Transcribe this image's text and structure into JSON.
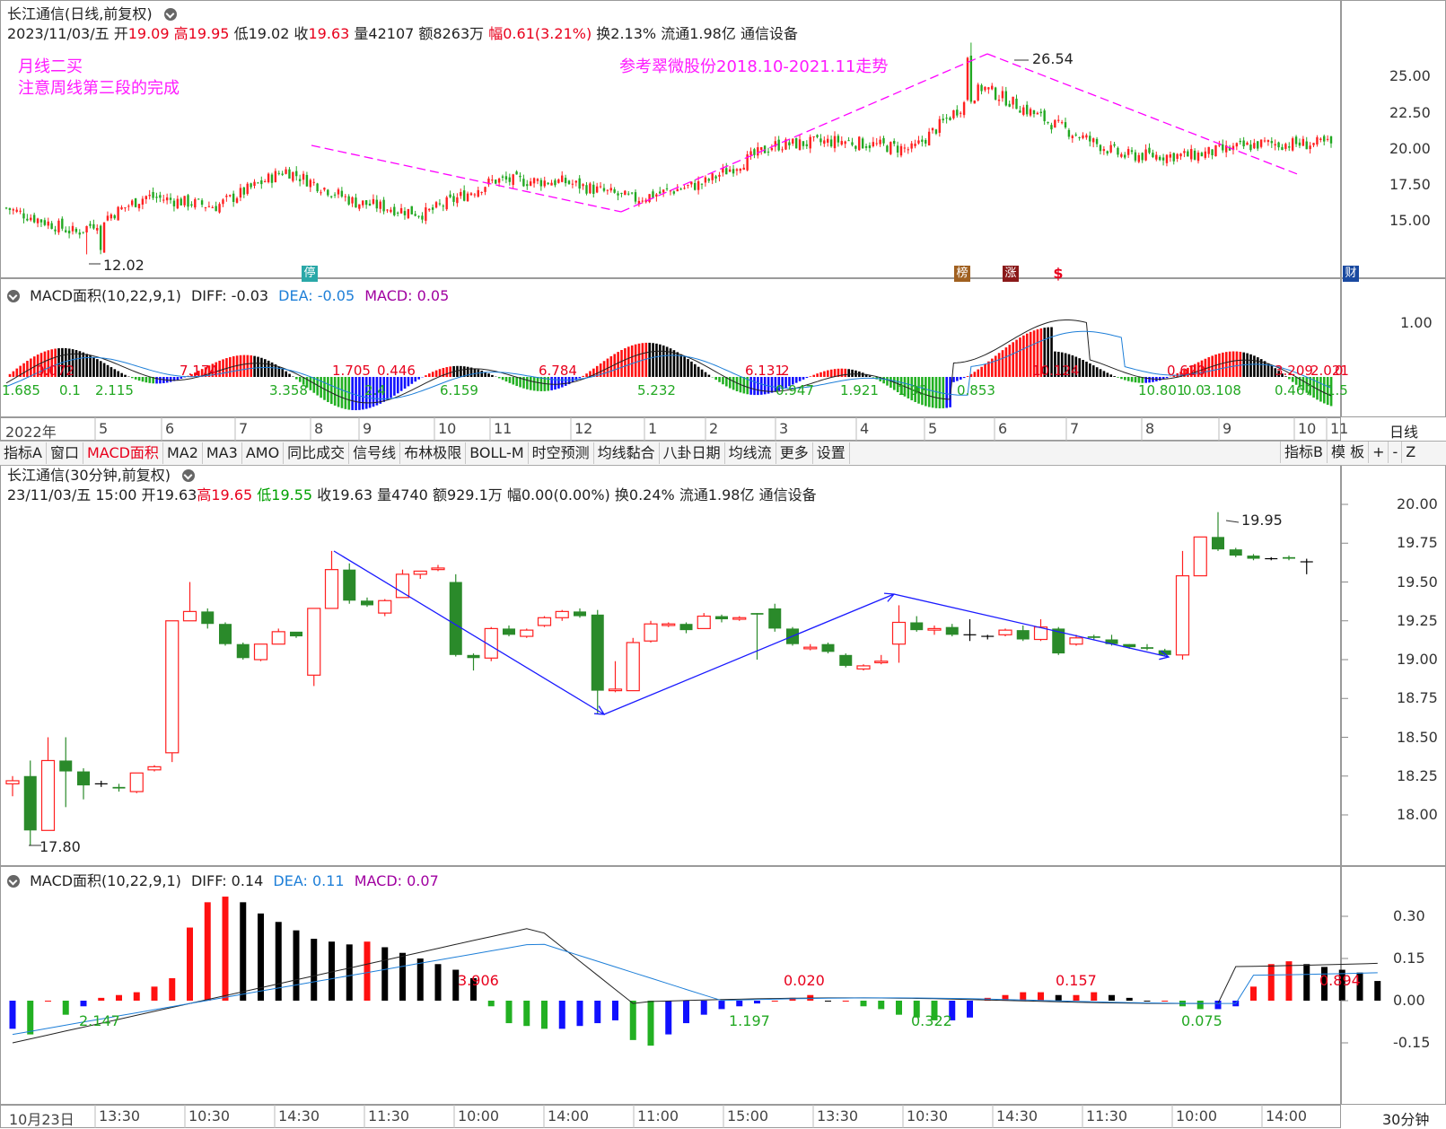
{
  "daily": {
    "title": "长江通信(日线,前复权)",
    "date": "2023/11/03/五",
    "open_label": "开",
    "open": "19.09",
    "high_label": "高",
    "high": "19.95",
    "low_label": "低",
    "low": "19.02",
    "close_label": "收",
    "close": "19.63",
    "vol": "量42107",
    "amt": "额8263万",
    "chg_label": "幅",
    "chg": "0.61(3.21%)",
    "turn": "换2.13%",
    "float": "流通1.98亿",
    "sector": "通信设备",
    "note1": "月线二买",
    "note2": "注意周线第三段的完成",
    "note3": "参考翠微股份2018.10-2021.11走势",
    "peak_label": "26.54",
    "low_label_val": "12.02",
    "yticks": [
      "25.00",
      "22.50",
      "20.00",
      "17.50",
      "15.00"
    ],
    "badges": [
      "停",
      "榜",
      "涨",
      "$",
      "财"
    ]
  },
  "daily_macd": {
    "title": "MACD面积(10,22,9,1)",
    "diff": "DIFF: -0.03",
    "dea": "DEA: -0.05",
    "macd": "MACD: 0.05",
    "ytick": "1.00",
    "area_labels_red": [
      "0.072",
      "7.174",
      "1.705",
      "0.446",
      "6.784",
      "6.131",
      "2",
      "10.124",
      "0.620",
      "3.209",
      "2.021",
      "0"
    ],
    "area_labels_green": [
      "1.685",
      "0.1",
      "2.115",
      "3.358",
      "2.4",
      "6.159",
      "5.232",
      "0.947",
      "1.921",
      "1.93",
      "0.853",
      "10.801",
      "0.0",
      "3.108",
      "0.467",
      "1.5"
    ]
  },
  "daily_xaxis": {
    "labels": [
      "2022年",
      "5",
      "6",
      "7",
      "8",
      "9",
      "10",
      "11",
      "12",
      "1",
      "2",
      "3",
      "4",
      "5",
      "6",
      "7",
      "8",
      "9",
      "10",
      "11"
    ],
    "period": "日线"
  },
  "toolbar": {
    "items": [
      "指标A",
      "窗口",
      "MACD面积",
      "MA2",
      "MA3",
      "AMO",
      "同比成交",
      "信号线",
      "布林极限",
      "BOLL-M",
      "时空预测",
      "均线黏合",
      "八卦日期",
      "均线流",
      "更多",
      "设置"
    ],
    "right": [
      "指标B",
      "模 板",
      "+",
      "-",
      "Z"
    ]
  },
  "intraday": {
    "title": "长江通信(30分钟,前复权)",
    "date": "23/11/03/五 15:00",
    "open": "开19.63",
    "high_label": "高",
    "high": "19.65",
    "low_label": "低",
    "low": "19.55",
    "close": "收19.63",
    "vol": "量4740",
    "amt": "额929.1万",
    "chg": "幅0.00(0.00%)",
    "turn": "换0.24%",
    "float": "流通1.98亿",
    "sector": "通信设备",
    "peak_label": "19.95",
    "low_label_val": "17.80",
    "yticks": [
      "20.00",
      "19.75",
      "19.50",
      "19.25",
      "19.00",
      "18.75",
      "18.50",
      "18.25",
      "18.00"
    ]
  },
  "intraday_macd": {
    "title": "MACD面积(10,22,9,1)",
    "diff": "DIFF: 0.14",
    "dea": "DEA: 0.11",
    "macd": "MACD: 0.07",
    "yticks": [
      "0.30",
      "0.15",
      "0.00",
      "-0.15"
    ],
    "area_labels_red": [
      "3.906",
      "0.020",
      "0.157",
      "0.894"
    ],
    "area_labels_green": [
      "2.147",
      "1.197",
      "0.322",
      "0.075"
    ]
  },
  "intraday_xaxis": {
    "labels": [
      "10月23日",
      "13:30",
      "10:30",
      "14:30",
      "11:30",
      "10:00",
      "14:00",
      "11:00",
      "15:00",
      "13:30",
      "10:30",
      "14:30",
      "11:30",
      "10:00",
      "14:00"
    ],
    "period": "30分钟"
  },
  "chart_data": [
    {
      "type": "candlestick",
      "title": "长江通信(日线,前复权)",
      "ylim": [
        11,
        27
      ],
      "x": [
        "2022-04",
        "2022-05",
        "2022-06",
        "2022-07",
        "2022-08",
        "2022-09",
        "2022-10",
        "2022-11",
        "2022-12",
        "2023-01",
        "2023-02",
        "2023-03",
        "2023-04",
        "2023-05",
        "2023-06",
        "2023-07",
        "2023-08",
        "2023-09",
        "2023-10",
        "2023-11"
      ],
      "close_trend": [
        15.2,
        13.5,
        16.0,
        15.3,
        17.8,
        15.6,
        14.8,
        17.1,
        17.0,
        15.8,
        16.9,
        19.5,
        19.8,
        19.2,
        23.5,
        21.0,
        18.8,
        18.8,
        19.6,
        19.6
      ],
      "high": 26.54,
      "low": 12.02,
      "last": {
        "open": 19.09,
        "high": 19.95,
        "low": 19.02,
        "close": 19.63
      }
    },
    {
      "type": "bar",
      "title": "MACD面积(10,22,9,1)",
      "diff": -0.03,
      "dea": -0.05,
      "macd": 0.05
    },
    {
      "type": "candlestick",
      "title": "长江通信(30分钟,前复权)",
      "ylim": [
        17.7,
        20.05
      ],
      "candles": [
        [
          18.2,
          18.22,
          18.12,
          18.25
        ],
        [
          18.25,
          17.9,
          17.8,
          18.35
        ],
        [
          17.9,
          18.35,
          17.9,
          18.5
        ],
        [
          18.35,
          18.28,
          18.05,
          18.5
        ],
        [
          18.28,
          18.19,
          18.1,
          18.3
        ],
        [
          18.2,
          18.2,
          18.18,
          18.22
        ],
        [
          18.18,
          18.17,
          18.15,
          18.2
        ],
        [
          18.15,
          18.27,
          18.14,
          18.27
        ],
        [
          18.29,
          18.31,
          18.28,
          18.32
        ],
        [
          18.4,
          19.25,
          18.34,
          19.25
        ],
        [
          19.25,
          19.31,
          19.25,
          19.5
        ],
        [
          19.31,
          19.23,
          19.2,
          19.33
        ],
        [
          19.23,
          19.1,
          19.09,
          19.24
        ],
        [
          19.1,
          19.01,
          19.0,
          19.11
        ],
        [
          19.0,
          19.1,
          18.99,
          19.1
        ],
        [
          19.1,
          19.18,
          19.1,
          19.2
        ],
        [
          19.18,
          19.15,
          19.14,
          19.17
        ],
        [
          18.9,
          19.33,
          18.83,
          19.33
        ],
        [
          19.33,
          19.58,
          19.33,
          19.7
        ],
        [
          19.58,
          19.38,
          19.36,
          19.62
        ],
        [
          19.38,
          19.35,
          19.34,
          19.4
        ],
        [
          19.3,
          19.38,
          19.28,
          19.39
        ],
        [
          19.4,
          19.55,
          19.4,
          19.58
        ],
        [
          19.55,
          19.57,
          19.52,
          19.57
        ],
        [
          19.58,
          19.59,
          19.57,
          19.61
        ],
        [
          19.5,
          19.03,
          19.02,
          19.55
        ],
        [
          19.03,
          19.01,
          18.93,
          19.04
        ],
        [
          19.01,
          19.2,
          18.99,
          19.21
        ],
        [
          19.2,
          19.16,
          19.15,
          19.22
        ],
        [
          19.15,
          19.19,
          19.14,
          19.2
        ],
        [
          19.22,
          19.27,
          19.21,
          19.28
        ],
        [
          19.27,
          19.31,
          19.25,
          19.32
        ],
        [
          19.31,
          19.28,
          19.27,
          19.33
        ],
        [
          19.29,
          18.8,
          18.65,
          19.32
        ],
        [
          18.8,
          18.81,
          18.79,
          18.99
        ],
        [
          18.8,
          19.11,
          18.8,
          19.14
        ],
        [
          19.12,
          19.23,
          19.11,
          19.25
        ],
        [
          19.22,
          19.23,
          19.21,
          19.24
        ],
        [
          19.23,
          19.19,
          19.17,
          19.24
        ],
        [
          19.2,
          19.28,
          19.2,
          19.3
        ],
        [
          19.28,
          19.26,
          19.24,
          19.29
        ],
        [
          19.26,
          19.27,
          19.25,
          19.28
        ],
        [
          19.3,
          19.29,
          19.0,
          19.3
        ],
        [
          19.33,
          19.2,
          19.18,
          19.36
        ],
        [
          19.2,
          19.1,
          19.09,
          19.21
        ],
        [
          19.07,
          19.08,
          19.06,
          19.1
        ],
        [
          19.1,
          19.05,
          19.04,
          19.11
        ],
        [
          19.03,
          18.96,
          18.95,
          19.04
        ],
        [
          18.94,
          18.96,
          18.93,
          18.97
        ],
        [
          18.98,
          18.99,
          18.97,
          19.03
        ],
        [
          19.1,
          19.24,
          18.98,
          19.35
        ],
        [
          19.24,
          19.19,
          19.18,
          19.28
        ],
        [
          19.19,
          19.2,
          19.16,
          19.22
        ],
        [
          19.21,
          19.16,
          19.15,
          19.23
        ],
        [
          19.16,
          19.16,
          19.12,
          19.26
        ],
        [
          19.15,
          19.15,
          19.13,
          19.16
        ],
        [
          19.16,
          19.19,
          19.15,
          19.2
        ],
        [
          19.19,
          19.13,
          19.12,
          19.22
        ],
        [
          19.13,
          19.21,
          19.12,
          19.26
        ],
        [
          19.2,
          19.04,
          19.03,
          19.21
        ],
        [
          19.1,
          19.14,
          19.09,
          19.16
        ],
        [
          19.15,
          19.14,
          19.13,
          19.16
        ],
        [
          19.13,
          19.1,
          19.09,
          19.16
        ],
        [
          19.1,
          19.08,
          19.07,
          19.1
        ],
        [
          19.08,
          19.07,
          19.06,
          19.1
        ],
        [
          19.06,
          19.03,
          19.02,
          19.07
        ],
        [
          19.03,
          19.54,
          19.0,
          19.7
        ],
        [
          19.54,
          19.79,
          19.54,
          19.79
        ],
        [
          19.79,
          19.71,
          19.7,
          19.95
        ],
        [
          19.71,
          19.67,
          19.66,
          19.72
        ],
        [
          19.67,
          19.65,
          19.64,
          19.68
        ],
        [
          19.65,
          19.65,
          19.64,
          19.66
        ],
        [
          19.66,
          19.65,
          19.64,
          19.67
        ],
        [
          19.63,
          19.63,
          19.55,
          19.65
        ]
      ]
    },
    {
      "type": "bar",
      "title": "MACD面积(10,22,9,1)",
      "diff": 0.14,
      "dea": 0.11,
      "macd": 0.07,
      "ylim": [
        -0.19,
        0.38
      ]
    }
  ]
}
